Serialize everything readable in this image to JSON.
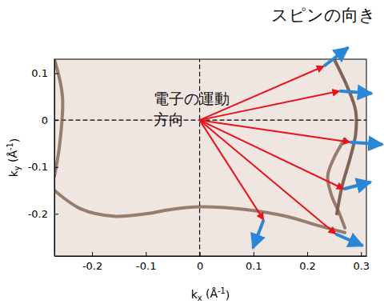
{
  "chart_data": {
    "type": "line",
    "x_label": "kx (Å-1)",
    "y_label": "ky (Å-1)",
    "xlim": [
      -0.27,
      0.31
    ],
    "ylim": [
      -0.29,
      0.13
    ],
    "xticks": [
      -0.2,
      -0.1,
      0,
      0.1,
      0.2,
      0.3
    ],
    "yticks": [
      -0.2,
      -0.1,
      0,
      0.1
    ],
    "series": [
      {
        "x": [
          -0.27,
          0.31
        ],
        "values": [
          0,
          0
        ],
        "color": "#000000",
        "line_style": "dashed"
      },
      {
        "x": [
          0,
          0
        ],
        "values": [
          -0.29,
          0.13
        ],
        "color": "#000000",
        "line_style": "dashed"
      },
      {
        "x": [
          0.25,
          0.275,
          0.29,
          0.29,
          0.28,
          0.265,
          0.255
        ],
        "values": [
          0.13,
          0.07,
          0.02,
          -0.03,
          -0.08,
          -0.14,
          -0.2
        ],
        "color": "#5a3a28",
        "line_style": "solid"
      },
      {
        "x": [
          0.27,
          0.25,
          0.238,
          0.245,
          0.26,
          0.27
        ],
        "values": [
          -0.04,
          -0.08,
          -0.12,
          -0.16,
          -0.2,
          -0.23
        ],
        "color": "#7a5a45",
        "line_style": "solid"
      },
      {
        "x": [
          -0.27,
          -0.22,
          -0.16,
          -0.1,
          -0.05,
          0.0,
          0.08,
          0.16,
          0.22,
          0.27
        ],
        "values": [
          -0.15,
          -0.19,
          -0.205,
          -0.2,
          -0.19,
          -0.185,
          -0.19,
          -0.205,
          -0.225,
          -0.24
        ],
        "color": "#7a5a45",
        "line_style": "solid"
      },
      {
        "x": [
          -0.27,
          -0.255,
          -0.26,
          -0.27
        ],
        "values": [
          0.13,
          0.05,
          -0.05,
          -0.12
        ],
        "color": "#7a5a45",
        "line_style": "solid"
      }
    ],
    "annotations": [
      {
        "text": "スピンの向き"
      },
      {
        "text": "電子の運動\n方向"
      }
    ],
    "origin": [
      0,
      0
    ],
    "arrows": [
      {
        "x": 0.231,
        "y": 0.115,
        "spin": [
          0.045,
          0.04
        ]
      },
      {
        "x": 0.26,
        "y": 0.062,
        "spin": [
          0.06,
          -0.005
        ]
      },
      {
        "x": 0.28,
        "y": -0.047,
        "spin": [
          0.06,
          -0.005
        ]
      },
      {
        "x": 0.268,
        "y": -0.147,
        "spin": [
          0.05,
          0.015
        ]
      },
      {
        "x": 0.253,
        "y": -0.243,
        "spin": [
          0.05,
          -0.025
        ]
      },
      {
        "x": 0.119,
        "y": -0.213,
        "spin": [
          -0.02,
          -0.06
        ]
      }
    ]
  }
}
